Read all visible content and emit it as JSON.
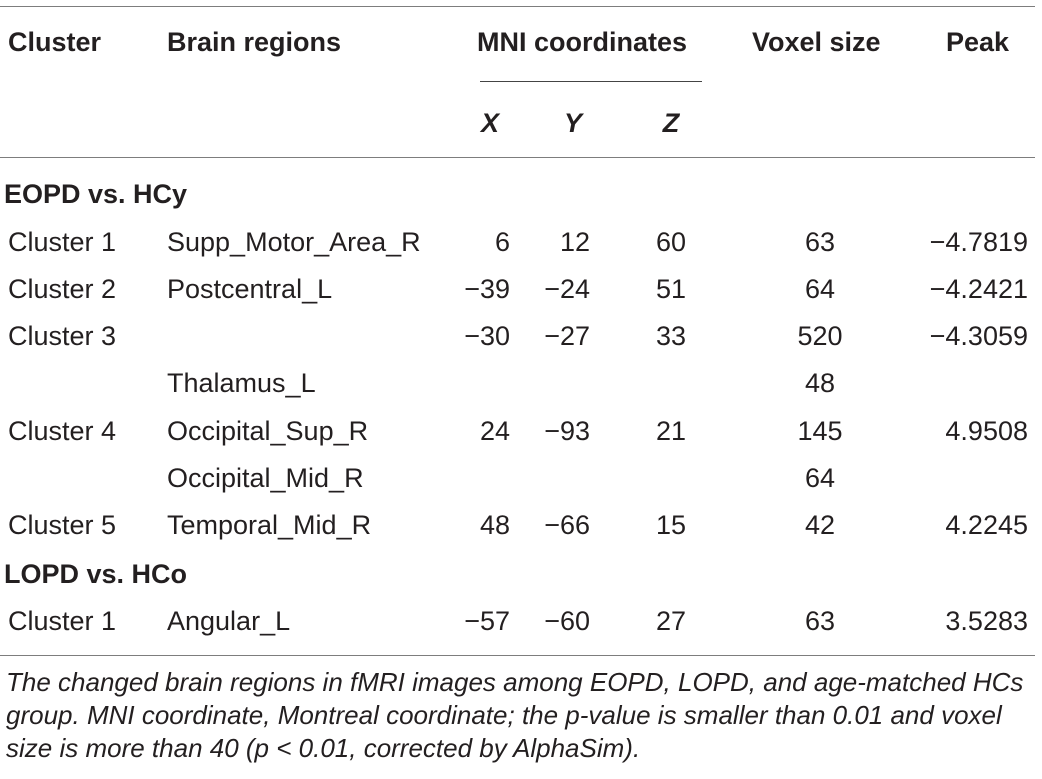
{
  "table": {
    "headers": {
      "cluster": "Cluster",
      "brain_regions": "Brain regions",
      "mni": "MNI coordinates",
      "voxel_size": "Voxel size",
      "peak": "Peak",
      "x": "X",
      "y": "Y",
      "z": "Z"
    },
    "groups": [
      {
        "label": "EOPD vs. HCy",
        "rows": [
          {
            "cluster": "Cluster 1",
            "region": "Supp_Motor_Area_R",
            "x": "6",
            "y": "12",
            "z": "60",
            "voxel": "63",
            "peak": "−4.7819"
          },
          {
            "cluster": "Cluster 2",
            "region": "Postcentral_L",
            "x": "−39",
            "y": "−24",
            "z": "51",
            "voxel": "64",
            "peak": "−4.2421"
          },
          {
            "cluster": "Cluster 3",
            "region": "",
            "x": "−30",
            "y": "−27",
            "z": "33",
            "voxel": "520",
            "peak": "−4.3059"
          },
          {
            "cluster": "",
            "region": "Thalamus_L",
            "x": "",
            "y": "",
            "z": "",
            "voxel": "48",
            "peak": ""
          },
          {
            "cluster": "Cluster 4",
            "region": "Occipital_Sup_R",
            "x": "24",
            "y": "−93",
            "z": "21",
            "voxel": "145",
            "peak": "4.9508"
          },
          {
            "cluster": "",
            "region": "Occipital_Mid_R",
            "x": "",
            "y": "",
            "z": "",
            "voxel": "64",
            "peak": ""
          },
          {
            "cluster": "Cluster 5",
            "region": "Temporal_Mid_R",
            "x": "48",
            "y": "−66",
            "z": "15",
            "voxel": "42",
            "peak": "4.2245"
          }
        ]
      },
      {
        "label": "LOPD vs. HCo",
        "rows": [
          {
            "cluster": "Cluster 1",
            "region": "Angular_L",
            "x": "−57",
            "y": "−60",
            "z": "27",
            "voxel": "63",
            "peak": "3.5283"
          }
        ]
      }
    ]
  },
  "caption": "The changed brain regions in fMRI images among EOPD, LOPD, and age-matched HCs group. MNI coordinate, Montreal coordinate; the p-value is smaller than 0.01 and voxel size is more than 40 (p < 0.01, corrected by AlphaSim)."
}
